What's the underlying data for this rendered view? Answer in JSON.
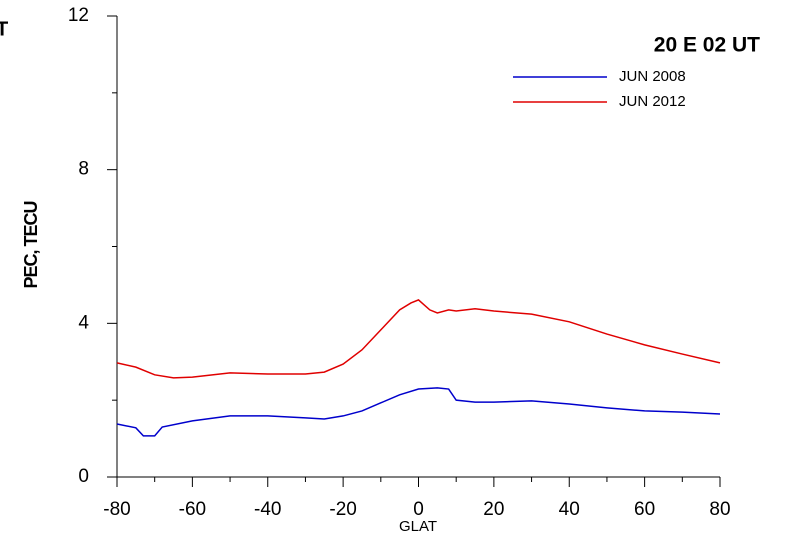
{
  "chart_data": {
    "type": "line",
    "title": "20 E   02 UT",
    "annotation": "T",
    "x_label": "GLAT",
    "y_label": "PEC, TECU",
    "xlim": [
      -80,
      80
    ],
    "xticks": [
      -80,
      -60,
      -40,
      -20,
      0,
      20,
      40,
      60,
      80
    ],
    "xticks_minor": [
      -70,
      -50,
      -30,
      -10,
      10,
      30,
      50,
      70
    ],
    "ylim": [
      0,
      12
    ],
    "yticks": [
      0,
      4,
      8,
      12
    ],
    "yticks_minor": [
      2,
      6,
      10
    ],
    "legend": "top-right",
    "series": [
      {
        "name": "JUN 2008",
        "color": "#0000cc",
        "x": [
          -80,
          -75,
          -73,
          -70,
          -68,
          -60,
          -50,
          -40,
          -30,
          -25,
          -20,
          -15,
          -10,
          -5,
          0,
          5,
          8,
          10,
          15,
          20,
          30,
          40,
          50,
          60,
          70,
          80
        ],
        "values": [
          1.38,
          1.28,
          1.07,
          1.07,
          1.3,
          1.46,
          1.59,
          1.59,
          1.54,
          1.51,
          1.59,
          1.72,
          1.93,
          2.14,
          2.29,
          2.32,
          2.29,
          2.0,
          1.95,
          1.95,
          1.98,
          1.9,
          1.8,
          1.72,
          1.69,
          1.64
        ]
      },
      {
        "name": "JUN 2012",
        "color": "#e00000",
        "x": [
          -80,
          -75,
          -70,
          -65,
          -60,
          -50,
          -40,
          -30,
          -25,
          -20,
          -15,
          -10,
          -5,
          -2,
          0,
          3,
          5,
          8,
          10,
          15,
          20,
          30,
          40,
          50,
          60,
          70,
          80
        ],
        "values": [
          2.97,
          2.86,
          2.66,
          2.58,
          2.6,
          2.71,
          2.68,
          2.68,
          2.73,
          2.94,
          3.31,
          3.83,
          4.35,
          4.53,
          4.61,
          4.35,
          4.27,
          4.35,
          4.32,
          4.38,
          4.32,
          4.24,
          4.04,
          3.72,
          3.44,
          3.2,
          2.97
        ]
      }
    ]
  }
}
